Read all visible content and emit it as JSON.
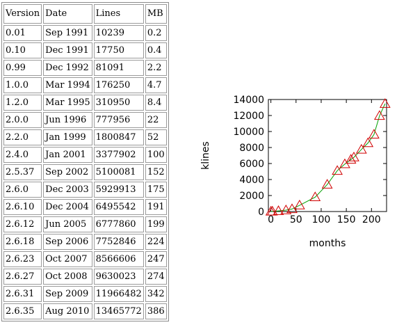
{
  "table": {
    "headers": [
      "Version",
      "Date",
      "Lines",
      "MB"
    ],
    "rows": [
      [
        "0.01",
        "Sep 1991",
        "10239",
        "0.2"
      ],
      [
        "0.10",
        "Dec 1991",
        "17750",
        "0.4"
      ],
      [
        "0.99",
        "Dec 1992",
        "81091",
        "2.2"
      ],
      [
        "1.0.0",
        "Mar 1994",
        "176250",
        "4.7"
      ],
      [
        "1.2.0",
        "Mar 1995",
        "310950",
        "8.4"
      ],
      [
        "2.0.0",
        "Jun 1996",
        "777956",
        "22"
      ],
      [
        "2.2.0",
        "Jan 1999",
        "1800847",
        "52"
      ],
      [
        "2.4.0",
        "Jan 2001",
        "3377902",
        "100"
      ],
      [
        "2.5.37",
        "Sep 2002",
        "5100081",
        "152"
      ],
      [
        "2.6.0",
        "Dec 2003",
        "5929913",
        "175"
      ],
      [
        "2.6.10",
        "Dec 2004",
        "6495542",
        "191"
      ],
      [
        "2.6.12",
        "Jun 2005",
        "6777860",
        "199"
      ],
      [
        "2.6.18",
        "Sep 2006",
        "7752846",
        "224"
      ],
      [
        "2.6.23",
        "Oct 2007",
        "8566606",
        "247"
      ],
      [
        "2.6.27",
        "Oct 2008",
        "9630023",
        "274"
      ],
      [
        "2.6.31",
        "Sep 2009",
        "11966482",
        "342"
      ],
      [
        "2.6.35",
        "Aug 2010",
        "13465772",
        "386"
      ]
    ]
  },
  "chart_data": {
    "type": "scatter",
    "xlabel": "months",
    "ylabel": "klines",
    "xlim": [
      -5,
      230
    ],
    "ylim": [
      0,
      14000
    ],
    "xticks": [
      0,
      50,
      100,
      150,
      200
    ],
    "yticks": [
      0,
      2000,
      4000,
      6000,
      8000,
      10000,
      12000,
      14000
    ],
    "marker": "triangle",
    "marker_color": "#d00000",
    "fit_color": "#00a000",
    "x": [
      0,
      3,
      15,
      30,
      42,
      57,
      88,
      112,
      132,
      147,
      159,
      165,
      180,
      193,
      205,
      216,
      227
    ],
    "y": [
      10.239,
      17.75,
      81.091,
      176.25,
      310.95,
      777.956,
      1800.847,
      3377.902,
      5100.081,
      5929.913,
      6495.542,
      6777.86,
      7752.846,
      8566.606,
      9630.023,
      11966.482,
      13465.772
    ],
    "grid": false
  }
}
